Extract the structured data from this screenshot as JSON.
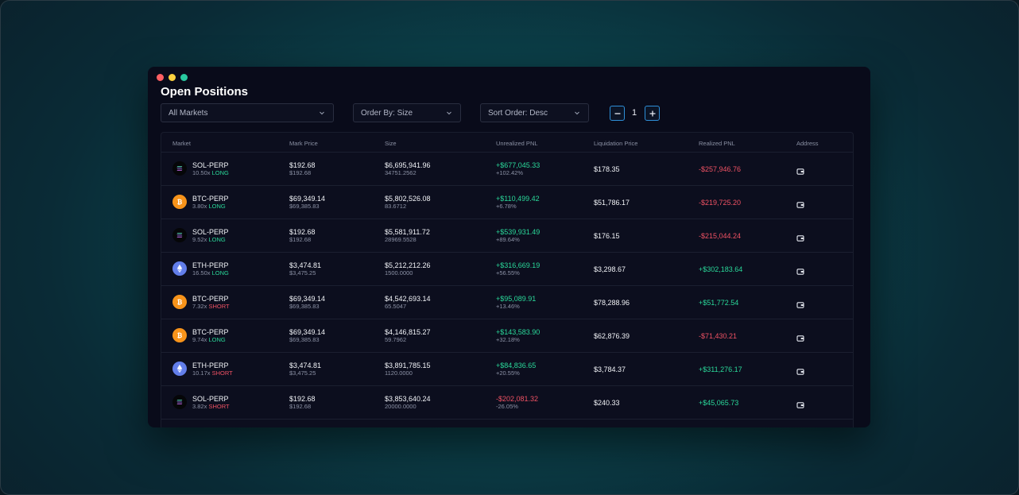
{
  "window": {
    "title": "Open Positions"
  },
  "filters": {
    "market": "All Markets",
    "order_by": "Order By: Size",
    "sort_order": "Sort Order: Desc",
    "stepper_value": "1"
  },
  "table": {
    "headers": [
      "Market",
      "Mark Price",
      "Size",
      "Unrealized PNL",
      "Liquidation Price",
      "Realized PNL",
      "Address"
    ],
    "rows": [
      {
        "coin": "sol",
        "market": "SOL-PERP",
        "leverage": "10.50x",
        "side": "LONG",
        "mark": "$192.68",
        "index": "$192.68",
        "size_usd": "$6,695,941.96",
        "size_units": "34751.2562",
        "upnl": "+$677,045.33",
        "upnl_pct": "+102.42%",
        "upnl_sign": "pos",
        "liq": "$178.35",
        "rpnl": "-$257,946.76",
        "rpnl_sign": "neg"
      },
      {
        "coin": "btc",
        "market": "BTC-PERP",
        "leverage": "3.80x",
        "side": "LONG",
        "mark": "$69,349.14",
        "index": "$69,385.83",
        "size_usd": "$5,802,526.08",
        "size_units": "83.6712",
        "upnl": "+$110,499.42",
        "upnl_pct": "+6.78%",
        "upnl_sign": "pos",
        "liq": "$51,786.17",
        "rpnl": "-$219,725.20",
        "rpnl_sign": "neg"
      },
      {
        "coin": "sol",
        "market": "SOL-PERP",
        "leverage": "9.52x",
        "side": "LONG",
        "mark": "$192.68",
        "index": "$192.68",
        "size_usd": "$5,581,911.72",
        "size_units": "28969.5528",
        "upnl": "+$539,931.49",
        "upnl_pct": "+89.64%",
        "upnl_sign": "pos",
        "liq": "$176.15",
        "rpnl": "-$215,044.24",
        "rpnl_sign": "neg"
      },
      {
        "coin": "eth",
        "market": "ETH-PERP",
        "leverage": "16.50x",
        "side": "LONG",
        "mark": "$3,474.81",
        "index": "$3,475.25",
        "size_usd": "$5,212,212.26",
        "size_units": "1500.0000",
        "upnl": "+$316,669.19",
        "upnl_pct": "+56.55%",
        "upnl_sign": "pos",
        "liq": "$3,298.67",
        "rpnl": "+$302,183.64",
        "rpnl_sign": "pos"
      },
      {
        "coin": "btc",
        "market": "BTC-PERP",
        "leverage": "7.32x",
        "side": "SHORT",
        "mark": "$69,349.14",
        "index": "$69,385.83",
        "size_usd": "$4,542,693.14",
        "size_units": "65.5047",
        "upnl": "+$95,089.91",
        "upnl_pct": "+13.46%",
        "upnl_sign": "pos",
        "liq": "$78,288.96",
        "rpnl": "+$51,772.54",
        "rpnl_sign": "pos"
      },
      {
        "coin": "btc",
        "market": "BTC-PERP",
        "leverage": "9.74x",
        "side": "LONG",
        "mark": "$69,349.14",
        "index": "$69,385.83",
        "size_usd": "$4,146,815.27",
        "size_units": "59.7962",
        "upnl": "+$143,583.90",
        "upnl_pct": "+32.18%",
        "upnl_sign": "pos",
        "liq": "$62,876.39",
        "rpnl": "-$71,430.21",
        "rpnl_sign": "neg"
      },
      {
        "coin": "eth",
        "market": "ETH-PERP",
        "leverage": "10.17x",
        "side": "SHORT",
        "mark": "$3,474.81",
        "index": "$3,475.25",
        "size_usd": "$3,891,785.15",
        "size_units": "1120.0000",
        "upnl": "+$84,836.65",
        "upnl_pct": "+20.55%",
        "upnl_sign": "pos",
        "liq": "$3,784.37",
        "rpnl": "+$311,276.17",
        "rpnl_sign": "pos"
      },
      {
        "coin": "sol",
        "market": "SOL-PERP",
        "leverage": "3.82x",
        "side": "SHORT",
        "mark": "$192.68",
        "index": "$192.68",
        "size_usd": "$3,853,640.24",
        "size_units": "20000.0000",
        "upnl": "-$202,081.32",
        "upnl_pct": "-26.05%",
        "upnl_sign": "neg",
        "liq": "$240.33",
        "rpnl": "+$45,065.73",
        "rpnl_sign": "pos"
      }
    ]
  },
  "icons": {
    "address": "wallet-icon",
    "sol": "solana-icon",
    "btc": "bitcoin-icon",
    "eth": "ethereum-icon"
  },
  "colors": {
    "positive": "#2ad99a",
    "negative": "#f05264",
    "accent": "#2e8fd8",
    "window_bg": "#090b1a"
  }
}
